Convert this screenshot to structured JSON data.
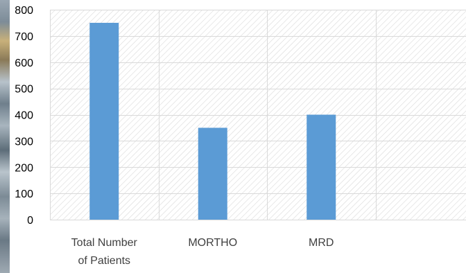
{
  "chart_data": {
    "type": "bar",
    "categories": [
      [
        "Total Number",
        "of Patients"
      ],
      [
        "MORTHO"
      ],
      [
        "MRD"
      ],
      [
        ""
      ]
    ],
    "values": [
      750,
      350,
      400,
      null
    ],
    "yticks": [
      "0",
      "100",
      "200",
      "300",
      "400",
      "500",
      "600",
      "700",
      "800"
    ],
    "ylim": [
      0,
      800
    ],
    "grid": true,
    "title": "",
    "xlabel": "",
    "ylabel": ""
  },
  "colors": {
    "bar": "#5b9bd5",
    "grid": "#d9d9d9",
    "hatch": "#d9d9d9"
  }
}
